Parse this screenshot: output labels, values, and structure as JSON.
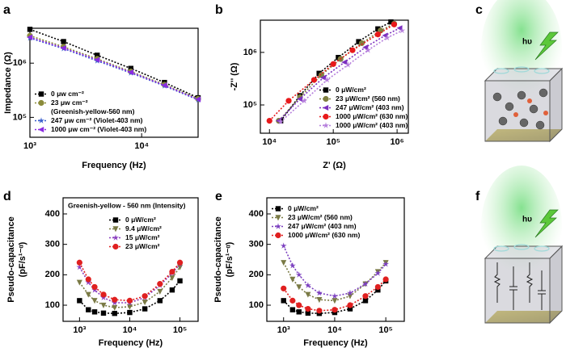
{
  "chart_data": [
    {
      "panel": "a",
      "type": "line",
      "xscale": "log",
      "yscale": "log",
      "xlabel": "Frequency (Hz)",
      "ylabel": "Impedance (Ω)",
      "xlim": [
        1000,
        32000
      ],
      "ylim": [
        43000,
        4400000
      ],
      "xticks": [
        {
          "value": 1000,
          "label": "10³"
        },
        {
          "value": 10000,
          "label": "10⁴"
        }
      ],
      "yticks": [
        {
          "value": 100000,
          "label": "10⁵"
        },
        {
          "value": 1000000,
          "label": "10⁶"
        }
      ],
      "legend": "lower left",
      "x": [
        1000,
        2000,
        4000,
        8000,
        16000,
        32000
      ],
      "series": [
        {
          "name": "0 μw cm⁻²",
          "color": "#000000",
          "marker": "square",
          "values": [
            4200000,
            2500000,
            1400000,
            800000,
            440000,
            230000
          ]
        },
        {
          "name": "23 μw cm⁻²",
          "note": "(Greenish-yellow-560 nm)",
          "color": "#8b8b3a",
          "marker": "circle",
          "values": [
            3200000,
            2000000,
            1200000,
            700000,
            400000,
            220000
          ]
        },
        {
          "name": "247 μw cm⁻² (Violet-403 nm)",
          "color": "#3a5fcd",
          "marker": "star",
          "values": [
            2900000,
            1850000,
            1100000,
            660000,
            380000,
            210000
          ]
        },
        {
          "name": "1000 μw cm⁻² (Violet-403 nm)",
          "color": "#8a2be2",
          "marker": "tri-left",
          "values": [
            3000000,
            1900000,
            1150000,
            680000,
            390000,
            215000
          ]
        }
      ]
    },
    {
      "panel": "b",
      "type": "line",
      "xscale": "log",
      "yscale": "log",
      "xlabel": "Z' (Ω)",
      "ylabel": "-Z'' (Ω)",
      "xlim": [
        7200,
        1500000
      ],
      "ylim": [
        29000,
        4100000
      ],
      "xticks": [
        {
          "value": 10000,
          "label": "10⁴"
        },
        {
          "value": 100000,
          "label": "10⁵"
        },
        {
          "value": 1000000,
          "label": "10⁶"
        }
      ],
      "yticks": [
        {
          "value": 100000,
          "label": "10⁵"
        },
        {
          "value": 1000000,
          "label": "10⁶"
        }
      ],
      "legend": "lower right",
      "series": [
        {
          "name": "0 μW/cm²",
          "color": "#000000",
          "marker": "square",
          "x": [
            15000,
            30000,
            60000,
            120000,
            250000,
            500000,
            800000
          ],
          "values": [
            50000,
            150000,
            400000,
            800000,
            1600000,
            2800000,
            3800000
          ]
        },
        {
          "name": "23 μW/cm² (560 nm)",
          "color": "#7f7f3f",
          "marker": "circle",
          "x": [
            14000,
            30000,
            65000,
            130000,
            280000,
            550000,
            900000
          ],
          "values": [
            50000,
            140000,
            370000,
            750000,
            1500000,
            2600000,
            3500000
          ]
        },
        {
          "name": "247 μW/cm² (403 nm)",
          "color": "#7b2fbf",
          "marker": "tri-left",
          "x": [
            14000,
            30000,
            70000,
            150000,
            320000,
            650000,
            1100000
          ],
          "values": [
            50000,
            130000,
            330000,
            650000,
            1250000,
            2100000,
            2900000
          ]
        },
        {
          "name": "1000 μW/cm² (630 nm)",
          "color": "#e8191b",
          "marker": "circle",
          "x": [
            10000,
            20000,
            50000,
            100000,
            200000,
            500000,
            900000
          ],
          "values": [
            50000,
            120000,
            300000,
            600000,
            1100000,
            2200000,
            3400000
          ]
        },
        {
          "name": "1000 μW/cm² (403 nm)",
          "color": "#b57edc",
          "marker": "star",
          "x": [
            15000,
            35000,
            80000,
            170000,
            350000,
            700000,
            1200000
          ],
          "values": [
            48000,
            120000,
            300000,
            580000,
            1100000,
            1900000,
            2600000
          ]
        }
      ]
    },
    {
      "panel": "d",
      "type": "line",
      "xscale": "log",
      "yscale": "linear",
      "xlabel": "Frequency (Hz)",
      "ylabel": [
        "Pseudo-capacitance",
        "(pF/s¹⁻ᵅ)"
      ],
      "annotation": "Greenish-yellow - 560 nm (Intensity)",
      "xlim": [
        470,
        230000
      ],
      "ylim": [
        47,
        453
      ],
      "xticks": [
        {
          "value": 1000,
          "label": "10³"
        },
        {
          "value": 10000,
          "label": "10⁴"
        },
        {
          "value": 100000,
          "label": "10⁵"
        }
      ],
      "yticks": [
        100,
        200,
        300,
        400
      ],
      "legend": "upper right",
      "x": [
        1000,
        1500,
        2000,
        3000,
        5000,
        10000,
        20000,
        40000,
        70000,
        100000
      ],
      "series": [
        {
          "name": "0 μW/cm²",
          "color": "#000000",
          "marker": "square",
          "values": [
            115,
            85,
            78,
            74,
            73,
            76,
            88,
            115,
            150,
            180
          ]
        },
        {
          "name": "9.4 μW/cm²",
          "color": "#7a7a45",
          "marker": "tri-down",
          "values": [
            175,
            135,
            115,
            100,
            92,
            95,
            110,
            145,
            190,
            225
          ]
        },
        {
          "name": "15 μW/cm²",
          "color": "#8b3fbf",
          "marker": "star",
          "values": [
            225,
            175,
            150,
            125,
            108,
            108,
            125,
            165,
            205,
            235
          ]
        },
        {
          "name": "23 μW/cm²",
          "color": "#e02020",
          "marker": "circle",
          "values": [
            240,
            185,
            160,
            135,
            118,
            115,
            130,
            170,
            210,
            240
          ]
        }
      ]
    },
    {
      "panel": "e",
      "type": "line",
      "xscale": "log",
      "yscale": "linear",
      "xlabel": "Frequency (Hz)",
      "ylabel": [
        "Pseudo-capacitance",
        "(pF/s¹⁻ᵅ)"
      ],
      "xlim": [
        470,
        230000
      ],
      "ylim": [
        47,
        453
      ],
      "xticks": [
        {
          "value": 1000,
          "label": "10³"
        },
        {
          "value": 10000,
          "label": "10⁴"
        },
        {
          "value": 100000,
          "label": "10⁵"
        }
      ],
      "yticks": [
        100,
        200,
        300,
        400
      ],
      "legend": "upper left",
      "x": [
        1000,
        1500,
        2000,
        3000,
        5000,
        10000,
        20000,
        40000,
        70000,
        100000
      ],
      "series": [
        {
          "name": "0 μW/cm²",
          "color": "#000000",
          "marker": "square",
          "values": [
            115,
            85,
            78,
            74,
            73,
            76,
            88,
            115,
            150,
            180
          ]
        },
        {
          "name": "23 μW/cm² (560 nm)",
          "color": "#7a7a45",
          "marker": "tri-down",
          "values": [
            240,
            185,
            160,
            135,
            118,
            115,
            130,
            170,
            210,
            240
          ]
        },
        {
          "name": "247 μW/cm² (403 nm)",
          "color": "#7b3fbf",
          "marker": "star",
          "values": [
            295,
            230,
            200,
            165,
            140,
            130,
            140,
            170,
            205,
            235
          ]
        },
        {
          "name": "1000 μW/cm² (630 nm)",
          "color": "#e02020",
          "marker": "circle",
          "values": [
            155,
            115,
            100,
            88,
            82,
            85,
            100,
            130,
            160,
            185
          ]
        }
      ]
    }
  ],
  "illustrations": [
    {
      "panel": "c",
      "label": "hυ"
    },
    {
      "panel": "f",
      "label": "hυ"
    }
  ]
}
